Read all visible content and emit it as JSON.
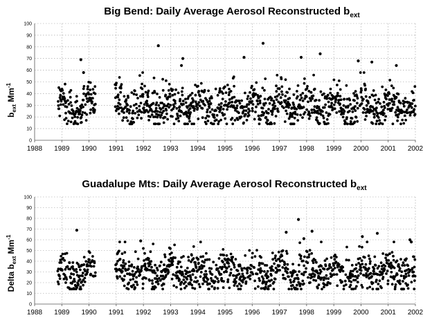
{
  "chart_data": [
    {
      "type": "scatter",
      "title": "Big Bend: Daily Average Aerosol Reconstructed b",
      "title_sub": "ext",
      "ylabel_main": "b",
      "ylabel_sub": "ext",
      "ylabel_unit": " Mm",
      "ylabel_sup": "-1",
      "xlim": [
        1988,
        2002
      ],
      "ylim": [
        0,
        100
      ],
      "xticks": [
        "1988",
        "1989",
        "1990",
        "1991",
        "1992",
        "1993",
        "1994",
        "1995",
        "1996",
        "1997",
        "1998",
        "1999",
        "2000",
        "2001",
        "2002"
      ],
      "yticks": [
        "0",
        "10",
        "20",
        "30",
        "40",
        "50",
        "60",
        "70",
        "80",
        "90",
        "100"
      ],
      "grid": true,
      "seed": 12345,
      "outliers": [
        {
          "x": 1989.7,
          "y": 69
        },
        {
          "x": 1989.8,
          "y": 58
        },
        {
          "x": 1992.55,
          "y": 81
        },
        {
          "x": 1993.45,
          "y": 70
        },
        {
          "x": 1993.4,
          "y": 64
        },
        {
          "x": 1995.7,
          "y": 71
        },
        {
          "x": 1996.4,
          "y": 83
        },
        {
          "x": 1997.8,
          "y": 71
        },
        {
          "x": 1998.5,
          "y": 74
        },
        {
          "x": 1999.9,
          "y": 68
        },
        {
          "x": 2000.4,
          "y": 67
        },
        {
          "x": 2001.3,
          "y": 64
        }
      ]
    },
    {
      "type": "scatter",
      "title": "Guadalupe Mts: Daily Average Aerosol Reconstructed b",
      "title_sub": "ext",
      "ylabel_main": "Delta b",
      "ylabel_sub": "ext",
      "ylabel_unit": " Mm",
      "ylabel_sup": "-1",
      "xlim": [
        1988,
        2002
      ],
      "ylim": [
        0,
        100
      ],
      "xticks": [
        "1988",
        "1989",
        "1990",
        "1991",
        "1992",
        "1993",
        "1994",
        "1995",
        "1996",
        "1997",
        "1998",
        "1999",
        "2000",
        "2001",
        "2002"
      ],
      "yticks": [
        "0",
        "10",
        "20",
        "30",
        "40",
        "50",
        "60",
        "70",
        "80",
        "90",
        "100"
      ],
      "grid": true,
      "seed": 67890,
      "outliers": [
        {
          "x": 1989.55,
          "y": 69
        },
        {
          "x": 1991.9,
          "y": 59
        },
        {
          "x": 1997.25,
          "y": 67
        },
        {
          "x": 1997.7,
          "y": 79
        },
        {
          "x": 1998.2,
          "y": 68
        },
        {
          "x": 1997.9,
          "y": 61
        },
        {
          "x": 2000.05,
          "y": 63
        },
        {
          "x": 2000.6,
          "y": 66
        },
        {
          "x": 2001.8,
          "y": 60
        },
        {
          "x": 2001.85,
          "y": 58
        }
      ]
    }
  ]
}
